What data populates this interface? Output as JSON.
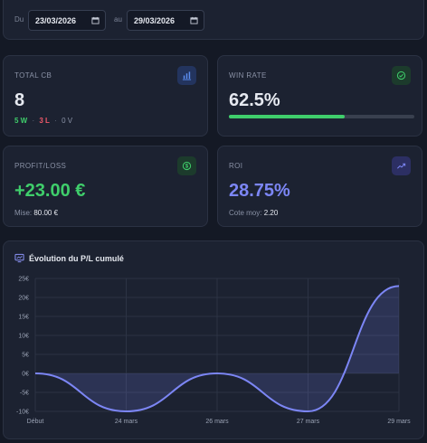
{
  "date_filter": {
    "from_label": "Du",
    "from_value": "23/03/2026",
    "to_label": "au",
    "to_value": "29/03/2026"
  },
  "stats": {
    "total": {
      "title": "TOTAL CB",
      "value": "8",
      "wins": "5 W",
      "losses": "3 L",
      "voids": "0 V",
      "sep": "·",
      "icon": "bar-chart-icon"
    },
    "winrate": {
      "title": "WIN RATE",
      "value": "62.5%",
      "progress": 0.625,
      "icon": "check-circle-icon"
    },
    "profit": {
      "title": "PROFIT/LOSS",
      "value": "+23.00 €",
      "stake_label": "Mise:",
      "stake_value": "80.00 €",
      "icon": "dollar-icon"
    },
    "roi": {
      "title": "ROI",
      "value": "28.75%",
      "odds_label": "Cote moy:",
      "odds_value": "2.20",
      "icon": "trending-up-icon"
    }
  },
  "colors": {
    "green": "#3fce6b",
    "red": "#f0596a",
    "purple": "#7c86f5",
    "blue_icon_bg": "#23345e",
    "blue_icon": "#5b8ef0"
  },
  "chart": {
    "title": "Évolution du P/L cumulé",
    "icon": "chart-screen-icon"
  },
  "chart_data": {
    "type": "line",
    "categories": [
      "Début",
      "24 mars",
      "26 mars",
      "27 mars",
      "29 mars"
    ],
    "values": [
      0,
      -10,
      0,
      -10,
      23
    ],
    "y_tick_labels": [
      "25€",
      "20€",
      "15€",
      "10€",
      "5€",
      "0€",
      "-5€",
      "-10€"
    ],
    "ylim": [
      -10,
      25
    ],
    "grid": true,
    "smooth": true,
    "fill": true,
    "color": "#7c86f5",
    "xlabel": "",
    "ylabel": "",
    "title": "Évolution du P/L cumulé"
  }
}
